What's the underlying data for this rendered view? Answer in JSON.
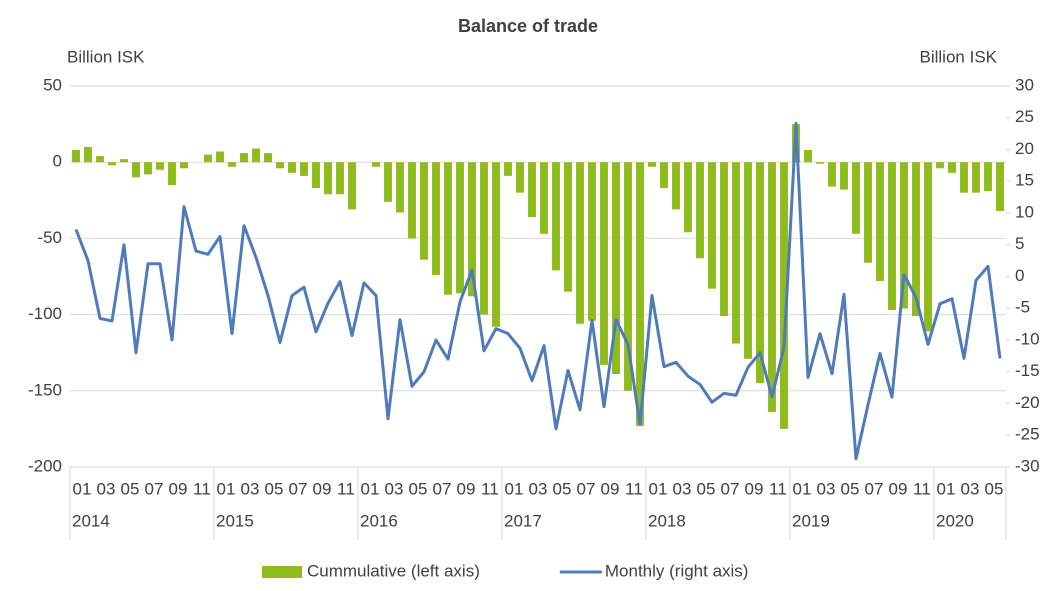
{
  "chart_data": {
    "type": "combo",
    "title": "Balance of trade",
    "ylabel": "Billion ISK",
    "y2label": "Billion ISK",
    "categories": [
      "01",
      null,
      "03",
      null,
      "05",
      null,
      "07",
      null,
      "09",
      null,
      "11",
      null,
      "01",
      null,
      "03",
      null,
      "05",
      null,
      "07",
      null,
      "09",
      null,
      "11",
      null,
      "01",
      null,
      "03",
      null,
      "05",
      null,
      "07",
      null,
      "09",
      null,
      "11",
      null,
      "01",
      null,
      "03",
      null,
      "05",
      null,
      "07",
      null,
      "09",
      null,
      "11",
      null,
      "01",
      null,
      "03",
      null,
      "05",
      null,
      "07",
      null,
      "09",
      null,
      "11",
      null,
      "01",
      null,
      "03",
      null,
      "05",
      null,
      "07",
      null,
      "09",
      null,
      "11",
      null,
      "01",
      null,
      "03",
      null,
      "05",
      null
    ],
    "years": [
      "2014",
      "2015",
      "2016",
      "2017",
      "2018",
      "2019",
      "2020"
    ],
    "series": [
      {
        "name": "Cummulative (left axis)",
        "type": "bar",
        "color": "#8fbc1c",
        "values": [
          8,
          10,
          4,
          -2,
          2,
          -10,
          -8,
          -5,
          -15,
          -4,
          0,
          5,
          7,
          -3,
          6,
          9,
          6,
          -4,
          -7,
          -9,
          -17,
          -21,
          -21,
          -31,
          0,
          -3,
          -26,
          -33,
          -50,
          -64,
          -74,
          -87,
          -86,
          -88,
          -100,
          -108,
          -9,
          -20,
          -36,
          -47,
          -71,
          -85,
          -106,
          -104,
          -133,
          -139,
          -150,
          -173,
          -3,
          -17,
          -31,
          -46,
          -63,
          -83,
          -101,
          -119,
          -129,
          -145,
          -164,
          -175,
          25,
          8,
          -1,
          -16,
          -18,
          -47,
          -66,
          -78,
          -97,
          -96,
          -101,
          -111,
          -4,
          -7,
          -20,
          -20,
          -19,
          -32
        ]
      },
      {
        "name": "Monthly (right axis)",
        "type": "line",
        "axis": "y2",
        "color": "#4f7bbd",
        "values": [
          7.4,
          2.5,
          -6.6,
          -7,
          5,
          -12,
          2,
          2,
          -10,
          11,
          4,
          3.5,
          6.3,
          -9,
          8,
          3,
          -3,
          -10.4,
          -3,
          -1.7,
          -8.7,
          -4.2,
          -0.8,
          -9.3,
          -1,
          -3,
          -22.4,
          -6.8,
          -17.3,
          -15,
          -10,
          -13,
          -4,
          1,
          -11.7,
          -8.2,
          -9,
          -11.3,
          -16.4,
          -10.9,
          -24,
          -14.8,
          -21,
          -6.9,
          -20.5,
          -6.8,
          -10.7,
          -23.3,
          -3,
          -14.2,
          -13.5,
          -15.7,
          -17,
          -19.8,
          -18.4,
          -18.7,
          -14.3,
          -12,
          -18.9,
          -11.2,
          24.1,
          -15.9,
          -9,
          -15.3,
          -2.8,
          -28.7,
          -20.2,
          -12.1,
          -19,
          0.3,
          -3.3,
          -10.7,
          -4.3,
          -3.5,
          -12.9,
          -0.6,
          1.6,
          -12.9
        ]
      }
    ],
    "ylim": [
      -200,
      50
    ],
    "yticks": [
      -200,
      -150,
      -100,
      -50,
      0,
      50
    ],
    "y2lim": [
      -30,
      30
    ],
    "y2ticks": [
      -30,
      -25,
      -20,
      -15,
      -10,
      -5,
      0,
      5,
      10,
      15,
      20,
      25,
      30
    ],
    "grid": true,
    "legend": "bottom"
  }
}
